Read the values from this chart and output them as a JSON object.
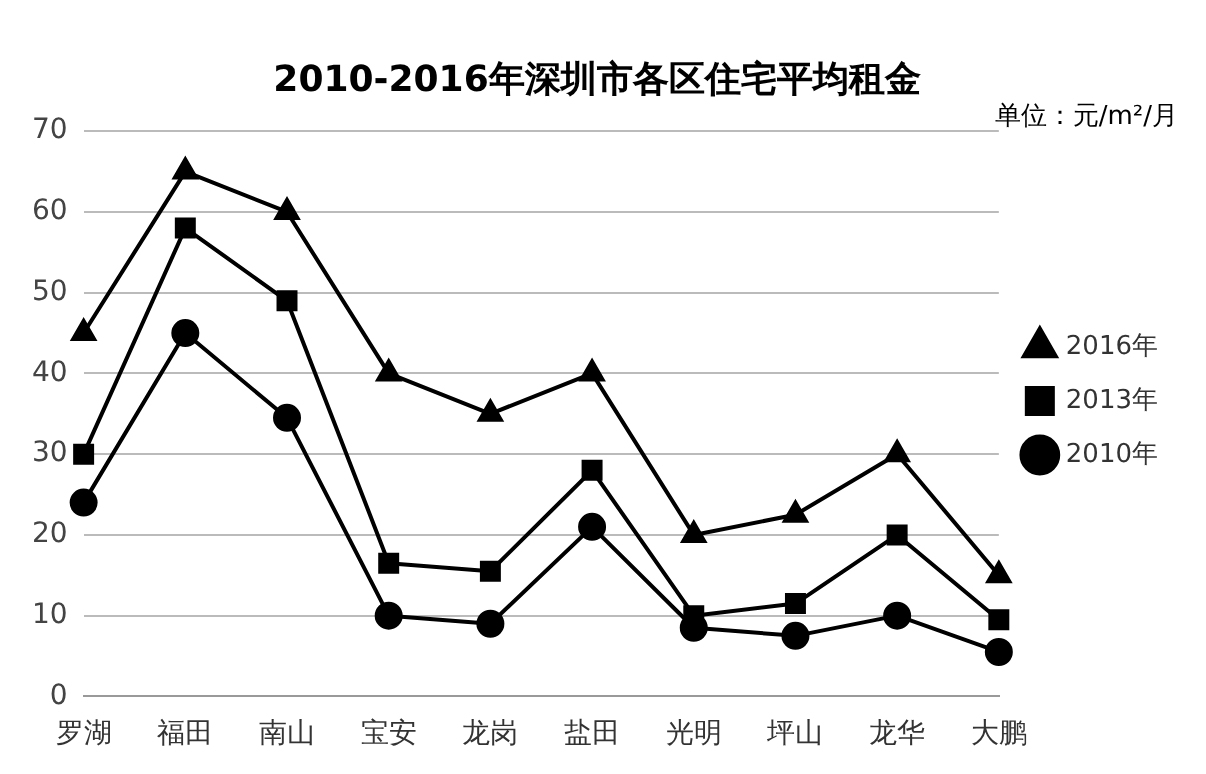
{
  "chart_data": {
    "type": "line",
    "title": "2010-2016年深圳市各区住宅平均租金",
    "annotations": [
      "单位：元/m²/月"
    ],
    "categories": [
      "罗湖",
      "福田",
      "南山",
      "宝安",
      "龙岗",
      "盐田",
      "光明",
      "坪山",
      "龙华",
      "大鹏"
    ],
    "series": [
      {
        "name": "2016年",
        "color": "#000000",
        "marker": "triangle",
        "values": [
          45,
          65,
          60,
          40,
          35,
          40,
          20,
          22.5,
          30,
          15
        ]
      },
      {
        "name": "2013年",
        "color": "#000000",
        "marker": "square",
        "values": [
          30,
          58,
          49,
          16.5,
          15.5,
          28,
          10,
          11.5,
          20,
          9.5
        ]
      },
      {
        "name": "2010年",
        "color": "#000000",
        "marker": "circle",
        "values": [
          24,
          45,
          34.5,
          10,
          9,
          21,
          8.5,
          7.5,
          10,
          5.5
        ]
      }
    ],
    "ylim": [
      0,
      70
    ],
    "yticks": [
      0,
      10,
      20,
      30,
      40,
      50,
      60,
      70
    ],
    "grid": "y",
    "legend": "right",
    "line_style": "solid"
  }
}
